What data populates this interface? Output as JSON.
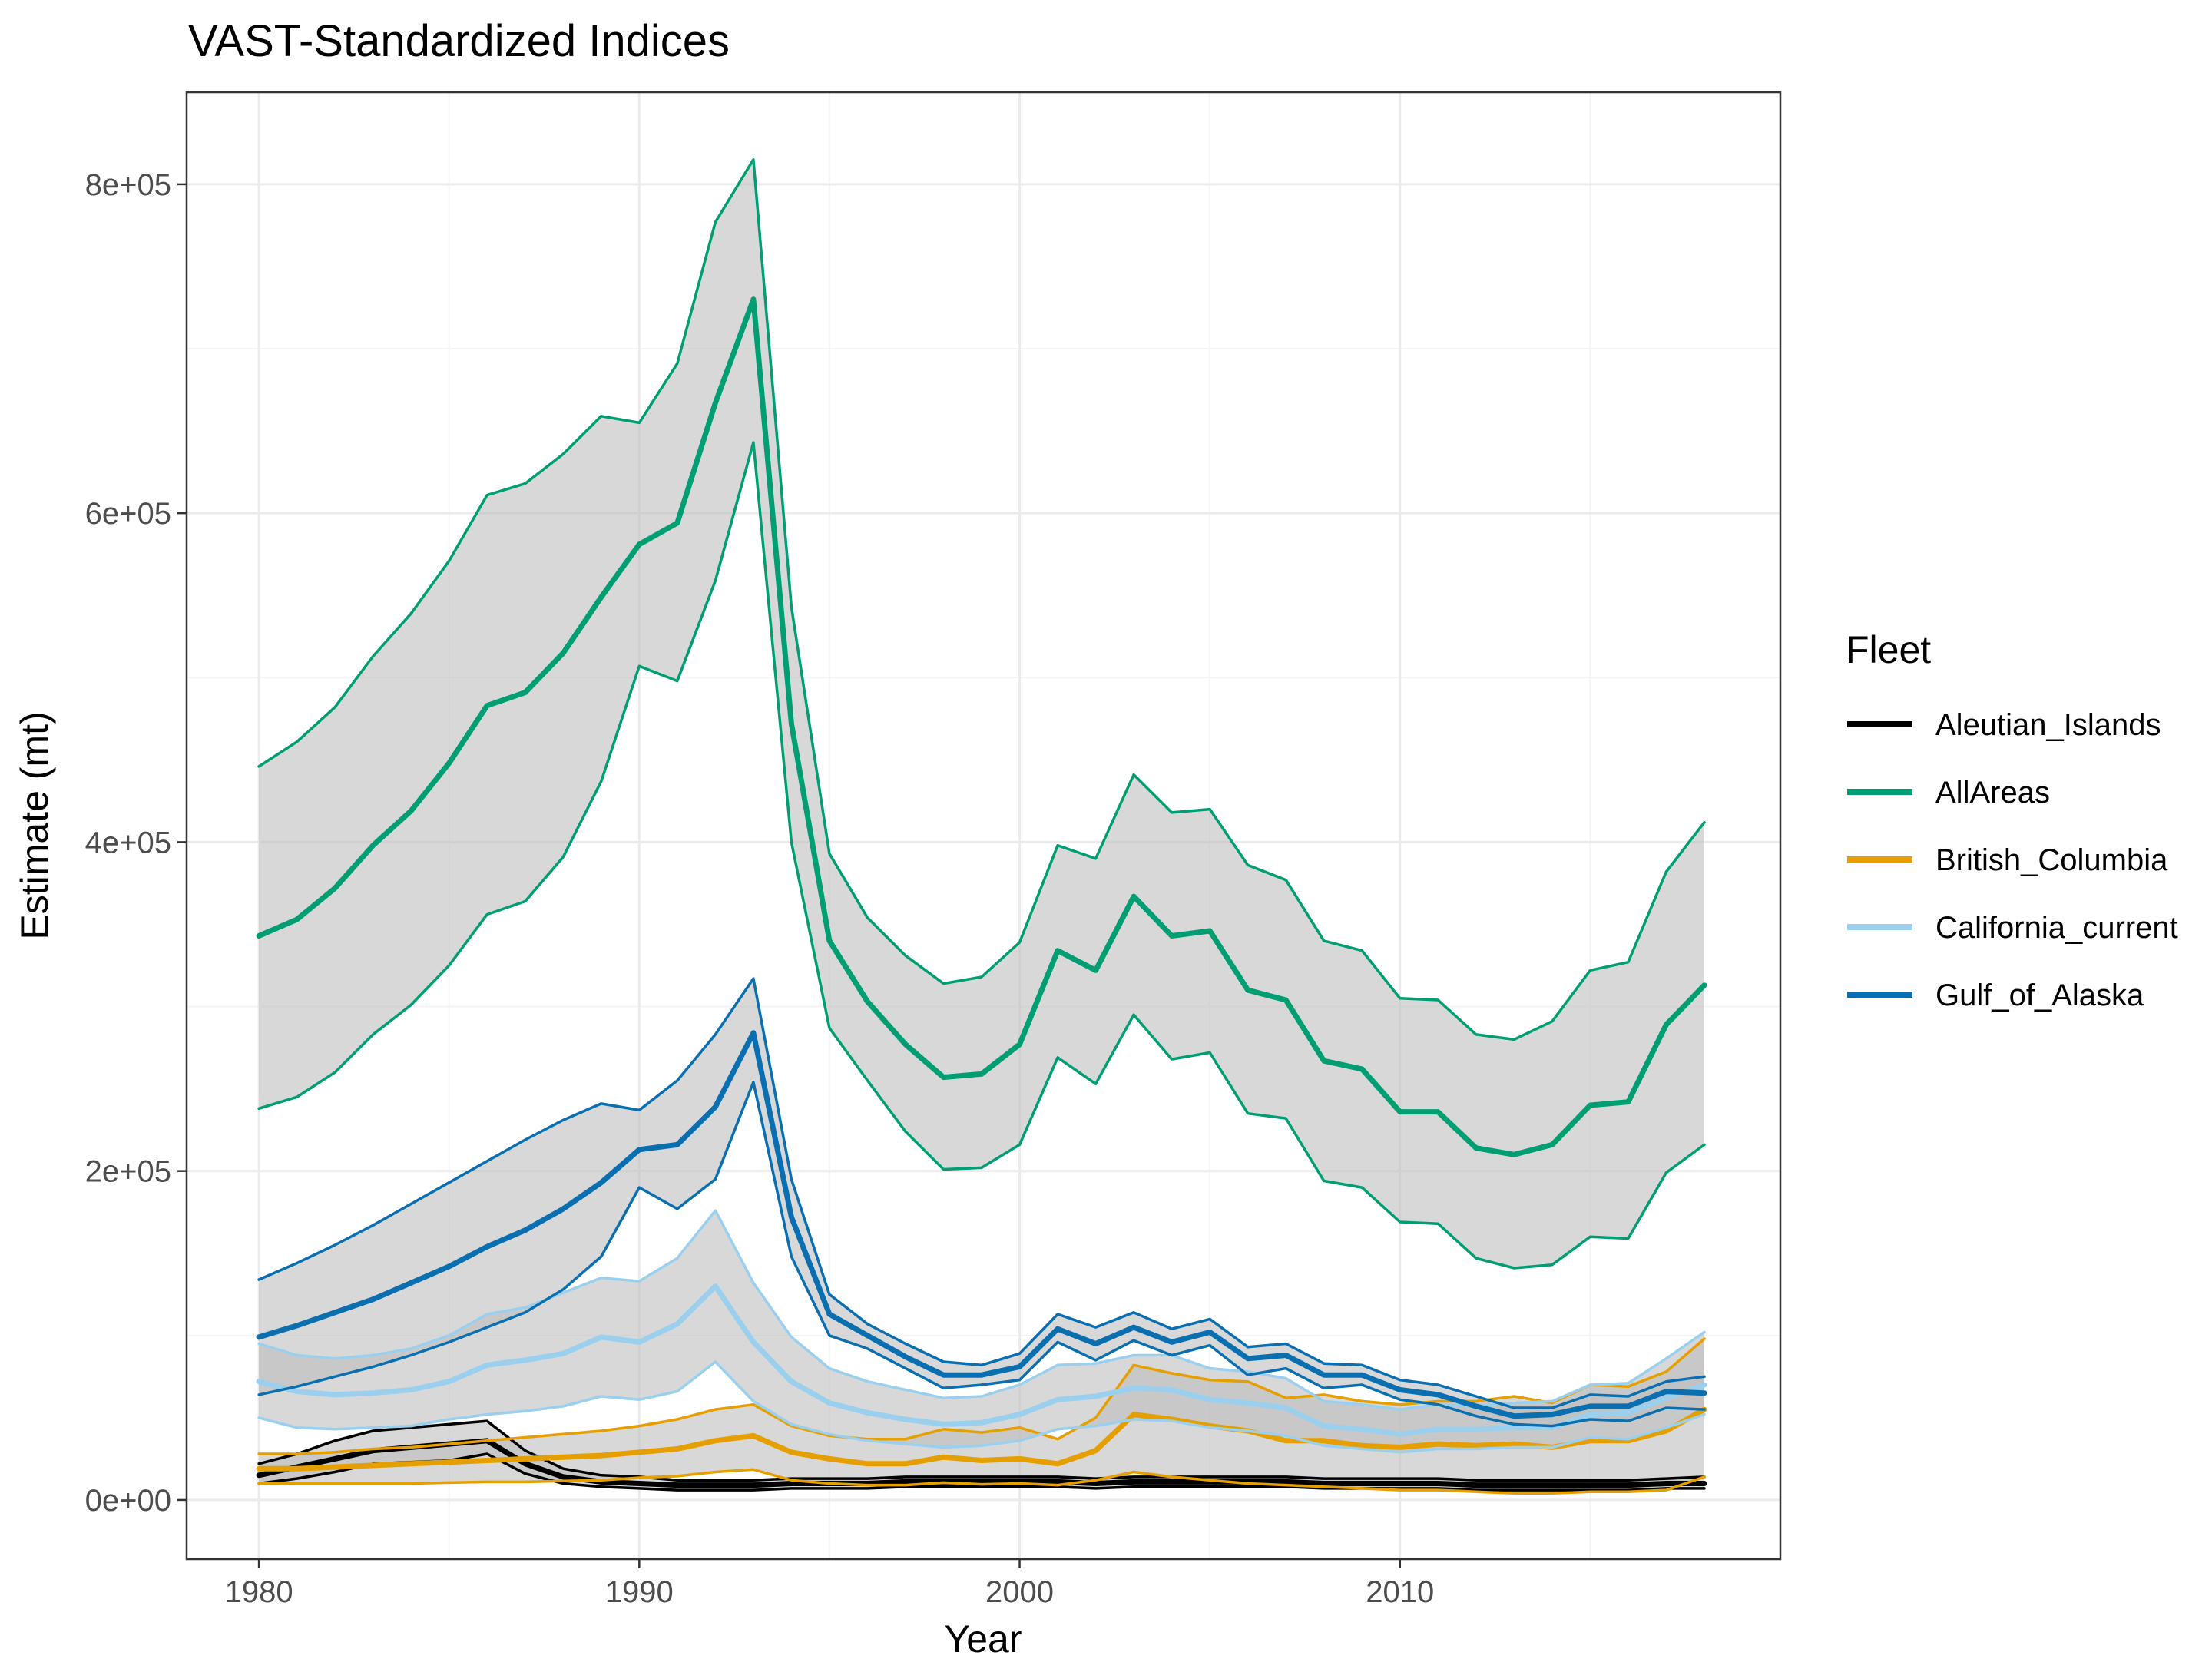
{
  "chart_data": {
    "type": "line",
    "title": "VAST-Standardized Indices",
    "xlabel": "Year",
    "ylabel": "Estimate (mt)",
    "xlim": [
      1978.1,
      2020.0
    ],
    "ylim": [
      -36000,
      856000
    ],
    "x_ticks": [
      1980,
      1990,
      2000,
      2010
    ],
    "x_tick_labels": [
      "1980",
      "1990",
      "2000",
      "2010"
    ],
    "y_ticks": [
      0,
      200000,
      400000,
      600000,
      800000
    ],
    "y_tick_labels": [
      "0e+00",
      "2e+05",
      "4e+05",
      "6e+05",
      "8e+05"
    ],
    "grid": true,
    "legend": {
      "title": "Fleet",
      "position": "right"
    },
    "x": [
      1980,
      1981,
      1982,
      1983,
      1984,
      1985,
      1986,
      1987,
      1988,
      1989,
      1990,
      1991,
      1992,
      1993,
      1994,
      1995,
      1996,
      1997,
      1998,
      1999,
      2000,
      2001,
      2002,
      2003,
      2004,
      2005,
      2006,
      2007,
      2008,
      2009,
      2010,
      2011,
      2012,
      2013,
      2014,
      2015,
      2016,
      2017,
      2018
    ],
    "band_fill": "#bebebe",
    "band_opacity": 0.6,
    "series": [
      {
        "name": "Aleutian_Islands",
        "color": "#000000",
        "estimate": [
          15000,
          20000,
          25000,
          30000,
          32000,
          34000,
          36000,
          22000,
          14000,
          11000,
          10000,
          9000,
          9000,
          9000,
          10000,
          10000,
          10000,
          11000,
          11000,
          11000,
          11000,
          11000,
          10000,
          11000,
          11000,
          11000,
          11000,
          11000,
          10000,
          10000,
          10000,
          10000,
          9000,
          9000,
          9000,
          9000,
          9000,
          10000,
          10000
        ],
        "lower": [
          10000,
          13000,
          17000,
          22000,
          23000,
          24000,
          28000,
          16000,
          10000,
          8000,
          7000,
          6000,
          6000,
          6000,
          7000,
          7000,
          7000,
          8000,
          8000,
          8000,
          8000,
          8000,
          7000,
          8000,
          8000,
          8000,
          8000,
          8000,
          7000,
          7000,
          7000,
          7000,
          6000,
          6000,
          6000,
          6000,
          6000,
          7000,
          7000
        ],
        "upper": [
          22000,
          28000,
          36000,
          42000,
          44000,
          46000,
          48000,
          30000,
          19000,
          15000,
          14000,
          12000,
          12000,
          12000,
          13000,
          13000,
          13000,
          14000,
          14000,
          14000,
          14000,
          14000,
          13000,
          14000,
          14000,
          14000,
          14000,
          14000,
          13000,
          13000,
          13000,
          13000,
          12000,
          12000,
          12000,
          12000,
          12000,
          13000,
          14000
        ]
      },
      {
        "name": "AllAreas",
        "color": "#009e73",
        "estimate": [
          343000,
          353000,
          372000,
          398000,
          419000,
          448000,
          483000,
          491000,
          515000,
          549000,
          581000,
          594000,
          667000,
          730000,
          472000,
          340000,
          303000,
          277000,
          257000,
          259000,
          277000,
          334000,
          322000,
          367000,
          343000,
          346000,
          310000,
          304000,
          267000,
          262000,
          236000,
          236000,
          214000,
          210000,
          216000,
          240000,
          242000,
          289000,
          313000
        ],
        "lower": [
          238000,
          245000,
          260000,
          283000,
          301000,
          325000,
          356000,
          364000,
          391000,
          437000,
          507000,
          498000,
          559000,
          643000,
          400000,
          287000,
          255000,
          224000,
          201000,
          202000,
          216000,
          269000,
          253000,
          295000,
          268000,
          272000,
          235000,
          232000,
          194000,
          190000,
          169000,
          168000,
          147000,
          141000,
          143000,
          160000,
          159000,
          199000,
          216000
        ],
        "upper": [
          446000,
          461000,
          482000,
          513000,
          539000,
          571000,
          611000,
          618000,
          636000,
          659000,
          655000,
          691000,
          777000,
          815000,
          543000,
          393000,
          354000,
          331000,
          314000,
          318000,
          339000,
          398000,
          390000,
          441000,
          418000,
          420000,
          386000,
          377000,
          340000,
          334000,
          305000,
          304000,
          283000,
          280000,
          291000,
          322000,
          327000,
          382000,
          412000
        ]
      },
      {
        "name": "British_Columbia",
        "color": "#e69f00",
        "estimate": [
          19000,
          19000,
          20000,
          21000,
          22000,
          23000,
          24000,
          25000,
          26000,
          27000,
          29000,
          31000,
          36000,
          39000,
          29000,
          25000,
          22000,
          22000,
          26000,
          24000,
          25000,
          22000,
          30000,
          52000,
          49000,
          45000,
          42000,
          36000,
          36000,
          33000,
          32000,
          34000,
          33000,
          34000,
          32000,
          36000,
          36000,
          42000,
          55000
        ],
        "lower": [
          10000,
          10000,
          10000,
          10000,
          10000,
          10500,
          11000,
          11000,
          11500,
          12000,
          13500,
          14500,
          17000,
          18500,
          12000,
          10000,
          9000,
          9000,
          10500,
          9500,
          10000,
          9000,
          12000,
          17000,
          14000,
          12000,
          10000,
          9000,
          8000,
          7000,
          6000,
          6000,
          5000,
          4000,
          4000,
          5000,
          5000,
          6000,
          14000
        ],
        "upper": [
          28000,
          28000,
          29000,
          31000,
          32000,
          34000,
          36000,
          38000,
          40000,
          42000,
          45000,
          49000,
          55000,
          58000,
          45000,
          39000,
          37000,
          37000,
          43000,
          41000,
          44000,
          37000,
          50000,
          82000,
          77000,
          73000,
          72000,
          62000,
          64000,
          60000,
          58000,
          60000,
          60000,
          63000,
          59000,
          70000,
          69000,
          78000,
          98000
        ]
      },
      {
        "name": "California_current",
        "color": "#9ad0ee",
        "estimate": [
          72000,
          66000,
          64000,
          65000,
          67000,
          72000,
          82000,
          85000,
          89000,
          99000,
          96000,
          107000,
          130000,
          96000,
          72000,
          59000,
          53000,
          49000,
          46000,
          47000,
          52000,
          61000,
          63000,
          68000,
          67000,
          61000,
          59000,
          56000,
          45000,
          43000,
          40000,
          43000,
          43000,
          44000,
          44000,
          52000,
          53000,
          62000,
          70000
        ],
        "lower": [
          50000,
          44000,
          43000,
          44000,
          45000,
          49000,
          52000,
          54000,
          57000,
          63000,
          61000,
          66000,
          84000,
          60000,
          46000,
          40000,
          36000,
          34000,
          32000,
          33000,
          36000,
          43000,
          45000,
          49000,
          48000,
          44000,
          42000,
          39000,
          33000,
          31000,
          29000,
          31000,
          31000,
          32000,
          32000,
          38000,
          37000,
          44000,
          52000
        ],
        "upper": [
          95000,
          88000,
          86000,
          88000,
          92000,
          100000,
          113000,
          117000,
          126000,
          135000,
          133000,
          147000,
          176000,
          132000,
          99000,
          80000,
          72000,
          67000,
          62000,
          63000,
          70000,
          82000,
          83000,
          88000,
          88000,
          80000,
          78000,
          74000,
          60000,
          58000,
          55000,
          58000,
          57000,
          59000,
          60000,
          70000,
          71000,
          86000,
          102000
        ]
      },
      {
        "name": "Gulf_of_Alaska",
        "color": "#0a6fb0",
        "estimate": [
          99000,
          106000,
          114000,
          122000,
          132000,
          142000,
          154000,
          164000,
          177000,
          193000,
          213000,
          216000,
          239000,
          284000,
          172000,
          113000,
          100000,
          87000,
          76000,
          76000,
          81000,
          104000,
          95000,
          105000,
          96000,
          102000,
          86000,
          88000,
          76000,
          76000,
          67000,
          64000,
          57000,
          51000,
          52000,
          57000,
          57000,
          66000,
          65000
        ],
        "lower": [
          64000,
          69000,
          75000,
          81000,
          88000,
          96000,
          105000,
          114000,
          128000,
          148000,
          190000,
          177000,
          195000,
          254000,
          148000,
          100000,
          92000,
          80000,
          68000,
          70000,
          73000,
          96000,
          85000,
          97000,
          88000,
          94000,
          76000,
          80000,
          68000,
          70000,
          61000,
          58000,
          51000,
          46000,
          45000,
          49000,
          48000,
          56000,
          55000
        ],
        "upper": [
          134000,
          144000,
          155000,
          167000,
          180000,
          193000,
          206000,
          219000,
          231000,
          241000,
          237000,
          255000,
          283000,
          317000,
          195000,
          125000,
          107000,
          95000,
          84000,
          82000,
          89000,
          113000,
          105000,
          114000,
          104000,
          110000,
          93000,
          95000,
          83000,
          82000,
          73000,
          70000,
          63000,
          56000,
          56000,
          64000,
          63000,
          72000,
          75000
        ]
      }
    ]
  }
}
